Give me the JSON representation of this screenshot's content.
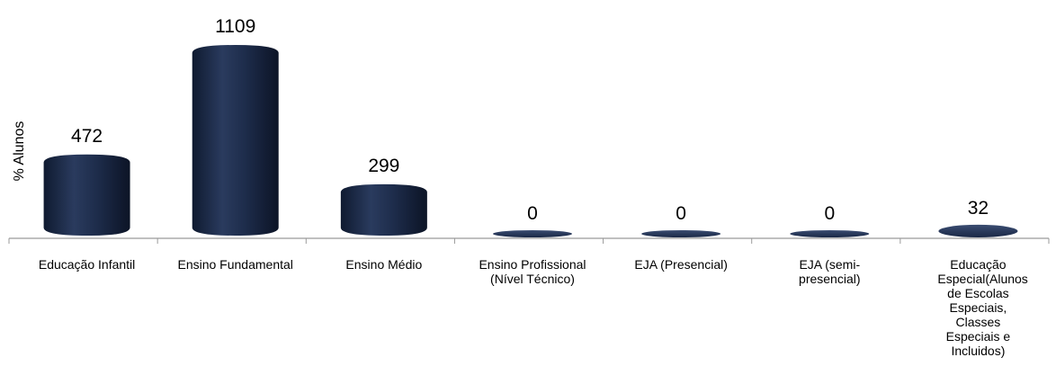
{
  "chart_data": {
    "type": "bar",
    "title": "",
    "xlabel": "",
    "ylabel": "% Alunos",
    "categories": [
      "Educação Infantil",
      "Ensino Fundamental",
      "Ensino Médio",
      "Ensino Profissional (Nível Técnico)",
      "EJA (Presencial)",
      "EJA (semi-presencial)",
      "Educação Especial(Alunos de Escolas Especiais, Classes Especiais e Incluidos)"
    ],
    "values": [
      472,
      1109,
      299,
      0,
      0,
      0,
      32
    ],
    "data_labels": [
      "472",
      "1109",
      "299",
      "0",
      "0",
      "0",
      "32"
    ],
    "ylim": [
      0,
      1109
    ],
    "bar_color": "#1c2b4a",
    "grid": false,
    "legend": "none"
  }
}
